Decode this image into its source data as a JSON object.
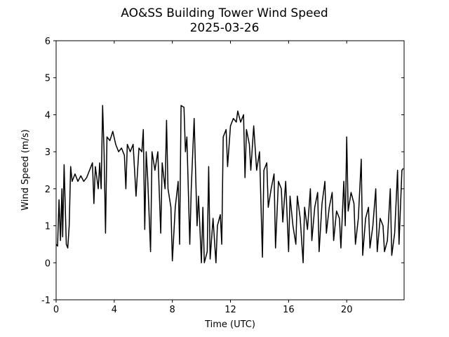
{
  "chart_data": {
    "type": "line",
    "title": "AO&SS Building Tower Wind Speed",
    "subtitle": "2025-03-26",
    "xlabel": "Time (UTC)",
    "ylabel": "Wind Speed (m/s)",
    "xlim": [
      0,
      23.95
    ],
    "xticks": [
      0,
      4,
      8,
      12,
      16,
      20
    ],
    "ylim": [
      -1,
      6
    ],
    "yticks": [
      -1,
      0,
      1,
      2,
      3,
      4,
      5,
      6
    ],
    "grid": false,
    "series": [
      {
        "name": "Wind Speed",
        "color": "#000000",
        "x": [
          0,
          0.1,
          0.2,
          0.3,
          0.4,
          0.45,
          0.55,
          0.7,
          0.8,
          0.9,
          1.0,
          1.1,
          1.3,
          1.5,
          1.7,
          1.9,
          2.1,
          2.3,
          2.5,
          2.6,
          2.7,
          2.9,
          3.0,
          3.1,
          3.2,
          3.3,
          3.4,
          3.5,
          3.7,
          3.9,
          4.1,
          4.3,
          4.5,
          4.7,
          4.8,
          4.9,
          5.1,
          5.3,
          5.5,
          5.7,
          5.9,
          6.0,
          6.1,
          6.2,
          6.3,
          6.5,
          6.6,
          6.8,
          7.0,
          7.2,
          7.3,
          7.5,
          7.6,
          7.7,
          7.9,
          8.0,
          8.2,
          8.4,
          8.5,
          8.6,
          8.8,
          8.9,
          9.0,
          9.2,
          9.3,
          9.5,
          9.7,
          9.8,
          10.0,
          10.1,
          10.2,
          10.4,
          10.5,
          10.6,
          10.8,
          11.0,
          11.1,
          11.3,
          11.4,
          11.5,
          11.7,
          11.8,
          12.0,
          12.2,
          12.4,
          12.5,
          12.7,
          12.9,
          13.0,
          13.1,
          13.3,
          13.4,
          13.6,
          13.8,
          14.0,
          14.2,
          14.3,
          14.5,
          14.6,
          14.8,
          15.0,
          15.1,
          15.3,
          15.5,
          15.6,
          15.8,
          16.0,
          16.1,
          16.3,
          16.5,
          16.6,
          16.8,
          17.0,
          17.1,
          17.3,
          17.5,
          17.6,
          17.8,
          18.0,
          18.1,
          18.3,
          18.5,
          18.6,
          18.8,
          19.0,
          19.1,
          19.3,
          19.5,
          19.6,
          19.8,
          19.9,
          20.0,
          20.1,
          20.3,
          20.5,
          20.6,
          20.8,
          21.0,
          21.1,
          21.3,
          21.5,
          21.6,
          21.8,
          22.0,
          22.1,
          22.3,
          22.5,
          22.6,
          22.8,
          23.0,
          23.1,
          23.3,
          23.5,
          23.6,
          23.8,
          23.9
        ],
        "values": [
          0.5,
          0.45,
          1.7,
          0.6,
          2.0,
          0.7,
          2.65,
          0.5,
          0.4,
          1.0,
          2.6,
          2.2,
          2.4,
          2.2,
          2.35,
          2.2,
          2.3,
          2.5,
          2.7,
          1.6,
          2.6,
          2.0,
          2.7,
          2.0,
          4.25,
          3.0,
          0.8,
          3.4,
          3.3,
          3.55,
          3.2,
          3.0,
          3.1,
          2.9,
          2.0,
          3.2,
          3.0,
          3.2,
          1.8,
          3.1,
          3.0,
          3.6,
          0.9,
          3.0,
          2.3,
          0.3,
          3.0,
          2.5,
          3.0,
          0.8,
          2.7,
          2.0,
          3.85,
          2.0,
          1.5,
          0.05,
          1.5,
          2.2,
          0.5,
          4.25,
          4.2,
          3.0,
          3.4,
          0.5,
          2.0,
          3.9,
          1.0,
          1.8,
          0.0,
          1.5,
          0.0,
          0.3,
          2.6,
          0.1,
          1.2,
          0.0,
          1.0,
          1.3,
          0.5,
          3.4,
          3.6,
          2.6,
          3.7,
          3.9,
          3.8,
          4.1,
          3.8,
          4.0,
          2.3,
          3.6,
          3.2,
          2.5,
          3.7,
          2.5,
          3.0,
          0.15,
          2.5,
          2.7,
          1.5,
          2.0,
          2.4,
          0.4,
          2.2,
          2.0,
          1.1,
          2.2,
          0.3,
          1.8,
          1.0,
          0.5,
          1.8,
          1.2,
          0.0,
          1.5,
          0.9,
          2.0,
          0.6,
          1.5,
          1.9,
          0.3,
          1.6,
          2.2,
          0.8,
          1.5,
          1.9,
          0.6,
          1.4,
          1.2,
          0.4,
          2.2,
          1.0,
          3.4,
          1.4,
          1.9,
          1.6,
          0.5,
          1.2,
          2.8,
          0.2,
          1.2,
          1.5,
          0.4,
          1.0,
          2.0,
          0.3,
          1.2,
          1.0,
          0.3,
          0.6,
          2.0,
          0.2,
          0.8,
          2.5,
          0.5,
          2.5,
          2.55
        ]
      }
    ]
  }
}
